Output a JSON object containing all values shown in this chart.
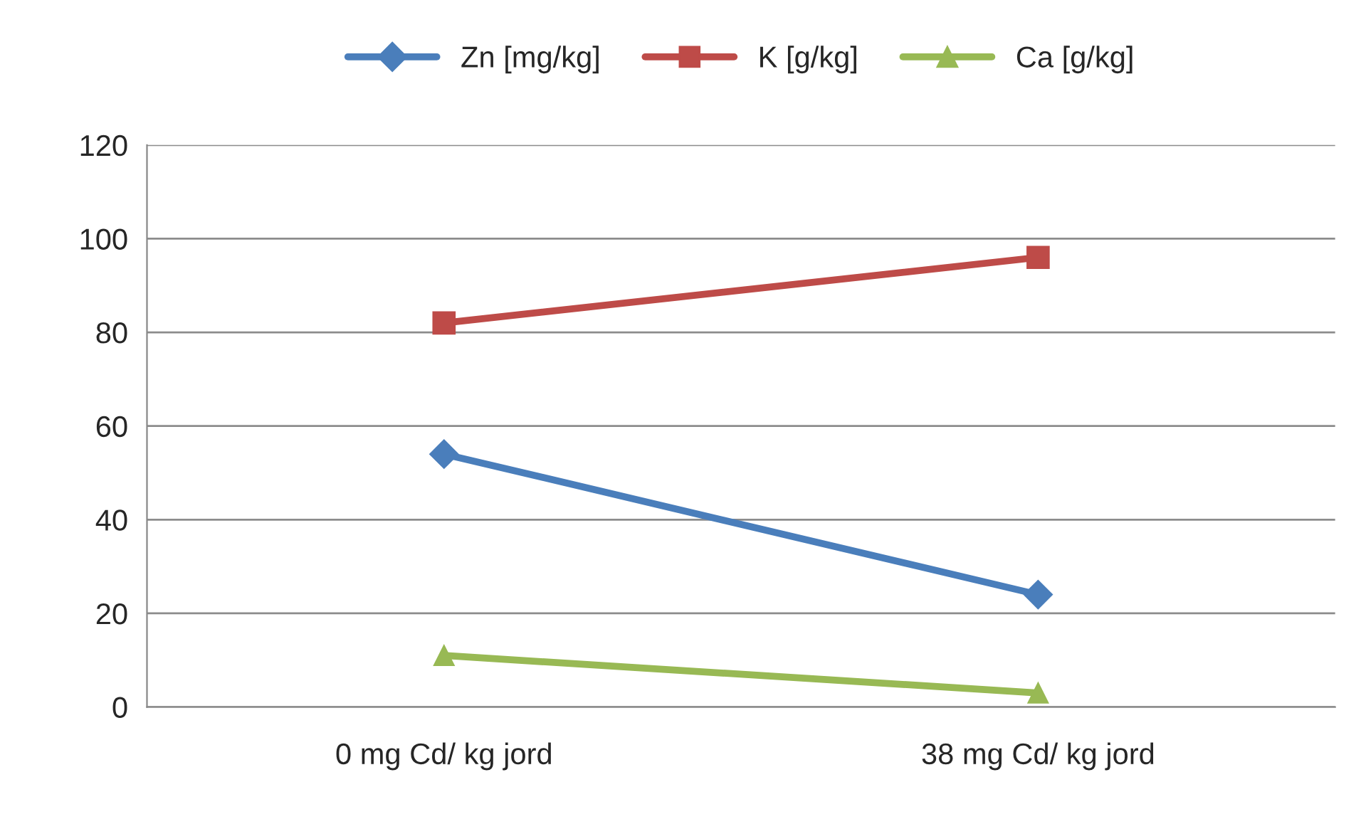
{
  "chart_data": {
    "type": "line",
    "categories": [
      "0 mg Cd/ kg jord",
      "38 mg Cd/ kg jord"
    ],
    "series": [
      {
        "name": "Zn [mg/kg]",
        "color": "#4a7ebb",
        "marker": "diamond",
        "values": [
          54,
          24
        ]
      },
      {
        "name": "K [g/kg]",
        "color": "#be4b48",
        "marker": "square",
        "values": [
          82,
          96
        ]
      },
      {
        "name": "Ca [g/kg]",
        "color": "#98b954",
        "marker": "triangle",
        "values": [
          11,
          3
        ]
      }
    ],
    "ylim": [
      0,
      120
    ],
    "yticks": [
      0,
      20,
      40,
      60,
      80,
      100,
      120
    ],
    "grid": "y",
    "legend": "top",
    "line_style": "solid"
  }
}
